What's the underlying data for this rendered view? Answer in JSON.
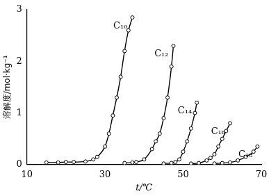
{
  "chart_data": {
    "type": "line",
    "x_label": "t/℃",
    "y_label": "溶解度/mol·kg⁻¹",
    "xlim": [
      10,
      70
    ],
    "xticks": [
      10,
      30,
      50,
      70
    ],
    "ylim": [
      0,
      3
    ],
    "yticks": [
      0,
      1,
      2,
      3
    ],
    "grid": false,
    "marker": "circle",
    "line_style": "solid",
    "series": [
      {
        "name": "C₁₀",
        "color": "#000000",
        "x": [
          15,
          18,
          20,
          22,
          25,
          27,
          28,
          30,
          31,
          32,
          33,
          34,
          35,
          36,
          37
        ],
        "values": [
          0.04,
          0.04,
          0.05,
          0.05,
          0.06,
          0.1,
          0.15,
          0.35,
          0.6,
          0.95,
          1.3,
          1.7,
          2.2,
          2.6,
          2.85
        ]
      },
      {
        "name": "C₁₂",
        "color": "#000000",
        "x": [
          35,
          37,
          38,
          40,
          42,
          43,
          44,
          45,
          46,
          47,
          47.5
        ],
        "values": [
          0.03,
          0.04,
          0.05,
          0.1,
          0.3,
          0.45,
          0.6,
          0.9,
          1.3,
          1.9,
          2.3
        ]
      },
      {
        "name": "C₁₄",
        "color": "#000000",
        "x": [
          45,
          47,
          48,
          49,
          50,
          51,
          52,
          53,
          53.5
        ],
        "values": [
          0.02,
          0.03,
          0.05,
          0.1,
          0.25,
          0.45,
          0.7,
          1.0,
          1.2
        ]
      },
      {
        "name": "C₁₆",
        "color": "#000000",
        "x": [
          52,
          54,
          56,
          57,
          58,
          59,
          60,
          61,
          62
        ],
        "values": [
          0.02,
          0.03,
          0.08,
          0.13,
          0.2,
          0.35,
          0.5,
          0.65,
          0.8
        ]
      },
      {
        "name": "C₁₈",
        "color": "#000000",
        "x": [
          58,
          60,
          62,
          64,
          66,
          68,
          69
        ],
        "values": [
          0.02,
          0.03,
          0.04,
          0.08,
          0.15,
          0.25,
          0.35
        ]
      }
    ]
  }
}
